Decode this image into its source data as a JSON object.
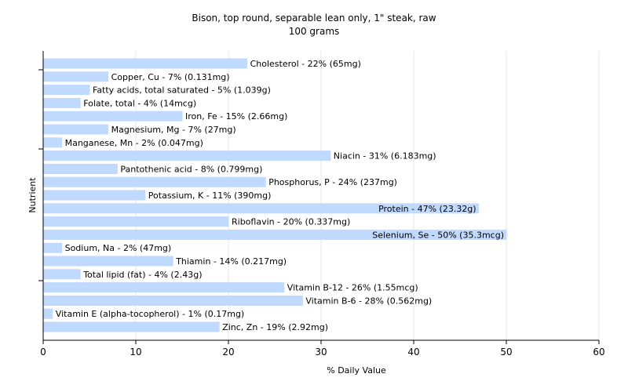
{
  "chart_data": {
    "type": "bar",
    "orientation": "horizontal",
    "title": "Bison, top round, separable lean only, 1\" steak, raw",
    "subtitle": "100 grams",
    "xlabel": "% Daily Value",
    "ylabel": "Nutrient",
    "xlim": [
      0,
      60
    ],
    "xticks": [
      0,
      10,
      20,
      30,
      40,
      50,
      60
    ],
    "grid": true,
    "bar_color": "#bfd9ff",
    "categories": [
      "Cholesterol",
      "Copper, Cu",
      "Fatty acids, total saturated",
      "Folate, total",
      "Iron, Fe",
      "Magnesium, Mg",
      "Manganese, Mn",
      "Niacin",
      "Pantothenic acid",
      "Phosphorus, P",
      "Potassium, K",
      "Protein",
      "Riboflavin",
      "Selenium, Se",
      "Sodium, Na",
      "Thiamin",
      "Total lipid (fat)",
      "Vitamin B-12",
      "Vitamin B-6",
      "Vitamin E (alpha-tocopherol)",
      "Zinc, Zn"
    ],
    "values": [
      22,
      7,
      5,
      4,
      15,
      7,
      2,
      31,
      8,
      24,
      11,
      47,
      20,
      50,
      2,
      14,
      4,
      26,
      28,
      1,
      19
    ],
    "labels": [
      "Cholesterol - 22% (65mg)",
      "Copper, Cu - 7% (0.131mg)",
      "Fatty acids, total saturated - 5% (1.039g)",
      "Folate, total - 4% (14mcg)",
      "Iron, Fe - 15% (2.66mg)",
      "Magnesium, Mg - 7% (27mg)",
      "Manganese, Mn - 2% (0.047mg)",
      "Niacin - 31% (6.183mg)",
      "Pantothenic acid - 8% (0.799mg)",
      "Phosphorus, P - 24% (237mg)",
      "Potassium, K - 11% (390mg)",
      "Protein - 47% (23.32g)",
      "Riboflavin - 20% (0.337mg)",
      "Selenium, Se - 50% (35.3mcg)",
      "Sodium, Na - 2% (47mg)",
      "Thiamin - 14% (0.217mg)",
      "Total lipid (fat) - 4% (2.43g)",
      "Vitamin B-12 - 26% (1.55mcg)",
      "Vitamin B-6 - 28% (0.562mg)",
      "Vitamin E (alpha-tocopherol) - 1% (0.17mg)",
      "Zinc, Zn - 19% (2.92mg)"
    ]
  }
}
